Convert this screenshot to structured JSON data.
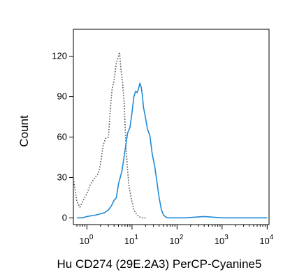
{
  "chart_data": {
    "type": "line",
    "title": "",
    "xlabel": "Hu CD274 (29E.2A3) PerCP-Cyanine5",
    "ylabel": "Count",
    "x_scale": "log",
    "xlim": [
      0.5,
      11000
    ],
    "ylim": [
      -5,
      140
    ],
    "grid": false,
    "y_ticks": [
      {
        "value": 0,
        "label": "0"
      },
      {
        "value": 30,
        "label": "30"
      },
      {
        "value": 60,
        "label": "60"
      },
      {
        "value": 90,
        "label": "90"
      },
      {
        "value": 120,
        "label": "120"
      }
    ],
    "x_major_ticks": [
      {
        "value": 1,
        "base": "10",
        "exp": "0"
      },
      {
        "value": 10,
        "base": "10",
        "exp": "1"
      },
      {
        "value": 100,
        "base": "10",
        "exp": "2"
      },
      {
        "value": 1000,
        "base": "10",
        "exp": "3"
      },
      {
        "value": 10000,
        "base": "10",
        "exp": "4"
      }
    ],
    "series": [
      {
        "style": "dotted",
        "color": "#555555",
        "x": [
          0.5,
          0.6,
          0.7,
          0.8,
          1.0,
          1.2,
          1.5,
          1.8,
          2.0,
          2.3,
          2.6,
          3.0,
          3.3,
          3.6,
          4.0,
          4.5,
          5.0,
          5.3,
          5.7,
          6.2,
          6.7,
          7.2,
          7.8,
          8.5,
          9.5,
          11,
          13,
          16,
          20
        ],
        "y": [
          29,
          12,
          8,
          12,
          18,
          25,
          30,
          33,
          40,
          54,
          59,
          60,
          80,
          95,
          102,
          115,
          120,
          123,
          110,
          100,
          85,
          60,
          40,
          25,
          15,
          6,
          2,
          0,
          0
        ]
      },
      {
        "style": "solid",
        "color": "#1f8ad6",
        "x": [
          0.6,
          0.8,
          1.0,
          1.5,
          2.0,
          2.5,
          3.0,
          3.5,
          4.0,
          4.5,
          5.0,
          6.0,
          7.0,
          8.0,
          9.0,
          10.0,
          11.0,
          12.0,
          13.0,
          14.0,
          15.0,
          16.0,
          17.0,
          18.0,
          20.0,
          22.0,
          25.0,
          28.0,
          32.0,
          36.0,
          40.0,
          45.0,
          50.0,
          60.0,
          80.0,
          150.0,
          400.0,
          1000.0,
          10000.0
        ],
        "y": [
          0,
          0,
          1,
          2,
          3,
          4,
          6,
          9,
          13,
          15,
          25,
          35,
          50,
          63,
          67,
          78,
          90,
          94,
          93,
          96,
          100,
          97,
          91,
          82,
          74,
          66,
          61,
          48,
          38,
          26,
          15,
          6,
          2,
          0,
          0,
          0,
          1,
          0,
          0
        ]
      }
    ]
  }
}
